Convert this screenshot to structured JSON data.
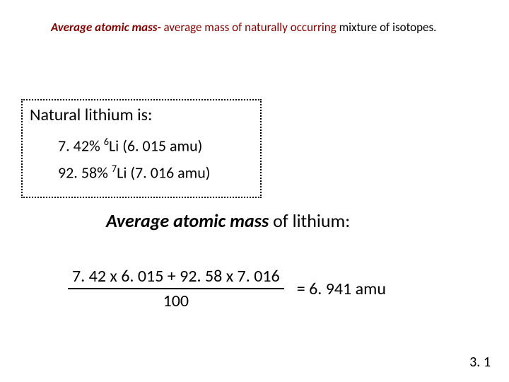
{
  "definition": {
    "term": "Average atomic mass-",
    "rest1": " average mass of naturally occurring ",
    "rest2": "mixture of isotopes."
  },
  "box": {
    "heading": "Natural lithium is:",
    "iso1_pct": "7. 42% ",
    "iso1_sup": "6",
    "iso1_rest": "Li (6. 015 amu)",
    "iso2_pct": "92. 58% ",
    "iso2_sup": "7",
    "iso2_rest": "Li (7. 016 amu)"
  },
  "section": {
    "strong": "Average atomic mass",
    "rest": " of lithium:"
  },
  "calc": {
    "numerator": "7. 42 x 6. 015 + 92. 58 x 7. 016",
    "denominator": "100",
    "result": "= 6. 941 amu"
  },
  "page": "3. 1"
}
